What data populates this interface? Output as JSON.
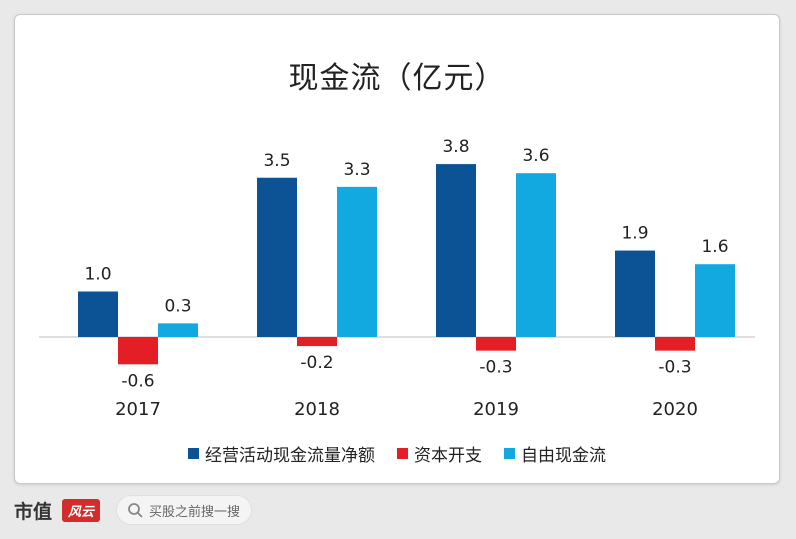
{
  "chart_data": {
    "type": "bar",
    "title": "现金流（亿元）",
    "categories": [
      "2017",
      "2018",
      "2019",
      "2020"
    ],
    "series": [
      {
        "name": "经营活动现金流量净额",
        "color": "#0b5394",
        "values": [
          1.0,
          3.5,
          3.8,
          1.9
        ],
        "labels": [
          "1.0",
          "3.5",
          "3.8",
          "1.9"
        ]
      },
      {
        "name": "资本开支",
        "color": "#e31e24",
        "values": [
          -0.6,
          -0.2,
          -0.3,
          -0.3
        ],
        "labels": [
          "-0.6",
          "-0.2",
          "-0.3",
          "-0.3"
        ]
      },
      {
        "name": "自由现金流",
        "color": "#12a9e0",
        "values": [
          0.3,
          3.3,
          3.6,
          1.6
        ],
        "labels": [
          "0.3",
          "3.3",
          "3.6",
          "1.6"
        ]
      }
    ],
    "xlabel": "",
    "ylabel": "",
    "ylim": [
      -0.7,
      4.0
    ],
    "grid": false,
    "legend": "bottom"
  },
  "footer": {
    "brand": "市值",
    "brand_tag": "风云",
    "search_placeholder": "买股之前搜一搜",
    "search_icon": "search-icon"
  }
}
